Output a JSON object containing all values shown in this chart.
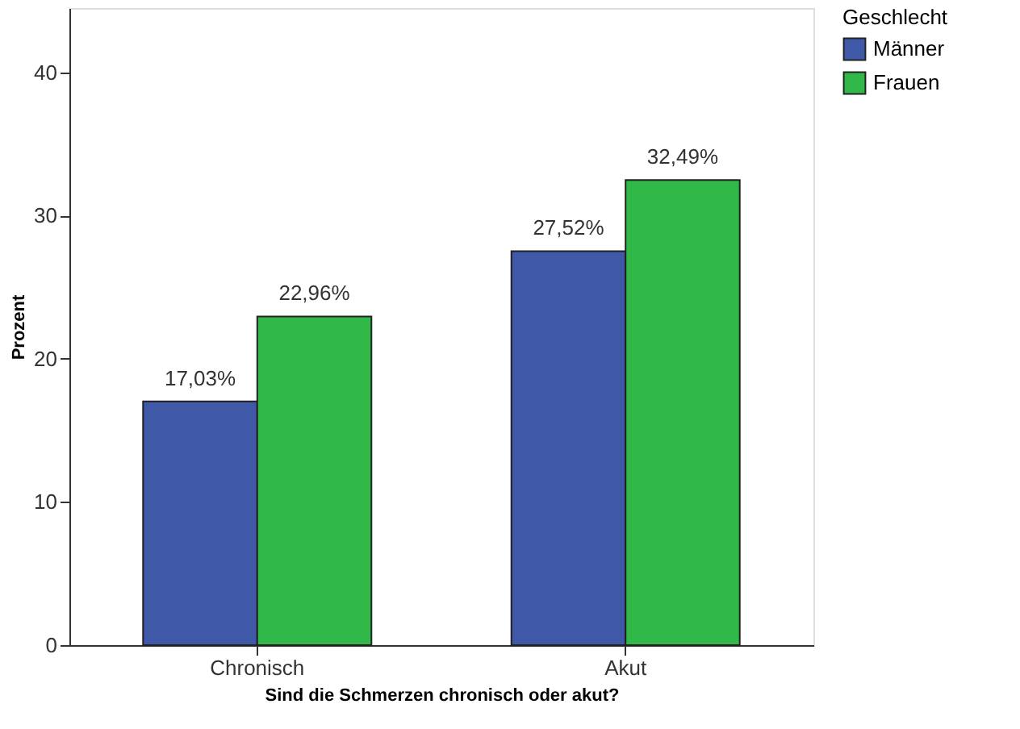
{
  "chart_data": {
    "type": "bar",
    "xlabel": "Sind die Schmerzen chronisch oder akut?",
    "ylabel": "Prozent",
    "legend_title": "Geschlecht",
    "categories": [
      "Chronisch",
      "Akut"
    ],
    "series": [
      {
        "name": "Männer",
        "color": "#3f58a8",
        "values": [
          17.03,
          27.52
        ],
        "value_labels": [
          "17,03%",
          "27,52%"
        ]
      },
      {
        "name": "Frauen",
        "color": "#30b848",
        "values": [
          22.96,
          32.49
        ],
        "value_labels": [
          "22,96%",
          "32,49%"
        ]
      }
    ],
    "ylim": [
      0,
      44.5
    ],
    "yticks": [
      0,
      10,
      20,
      30,
      40
    ],
    "grid": false,
    "legend": "top right"
  }
}
